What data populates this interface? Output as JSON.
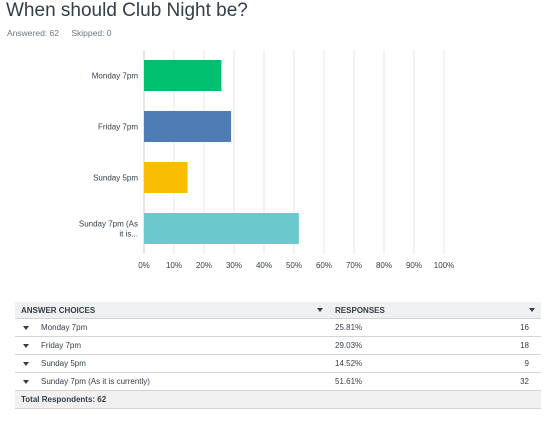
{
  "question": {
    "title": "When should Club Night be?",
    "answered": "Answered: 62",
    "skipped": "Skipped: 0"
  },
  "chart_data": {
    "type": "bar",
    "orientation": "horizontal",
    "categories": [
      "Monday 7pm",
      "Friday 7pm",
      "Sunday 5pm",
      "Sunday 7pm (As|it is..."
    ],
    "values": [
      25.81,
      29.03,
      14.52,
      51.61
    ],
    "colors": [
      "#00bf6f",
      "#507cb6",
      "#f9be00",
      "#6bc8cd"
    ],
    "x_ticks": [
      "0%",
      "10%",
      "20%",
      "30%",
      "40%",
      "50%",
      "60%",
      "70%",
      "80%",
      "90%",
      "100%"
    ],
    "xlim": [
      0,
      100
    ],
    "grid": true
  },
  "table": {
    "headers": {
      "choices": "ANSWER CHOICES",
      "responses": "RESPONSES"
    },
    "rows": [
      {
        "choice": "Monday 7pm",
        "pct": "25.81%",
        "count": "16"
      },
      {
        "choice": "Friday 7pm",
        "pct": "29.03%",
        "count": "18"
      },
      {
        "choice": "Sunday 5pm",
        "pct": "14.52%",
        "count": "9"
      },
      {
        "choice": "Sunday 7pm (As it is currently)",
        "pct": "51.61%",
        "count": "32"
      }
    ],
    "total": "Total Respondents: 62"
  }
}
